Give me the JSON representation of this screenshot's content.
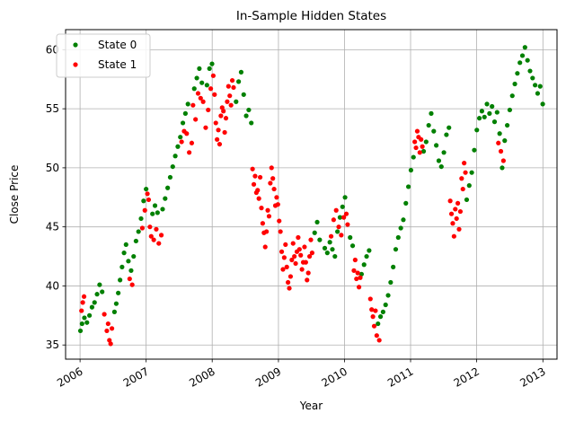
{
  "chart_data": {
    "type": "scatter",
    "title": "In-Sample Hidden States",
    "xlabel": "Year",
    "ylabel": "Close Price",
    "xlim": [
      "2005-10-13",
      "2013-03-20"
    ],
    "ylim": [
      33.8,
      61.7
    ],
    "x_ticks": [
      "2006",
      "2007",
      "2008",
      "2009",
      "2010",
      "2011",
      "2012",
      "2013"
    ],
    "y_ticks": [
      35,
      40,
      45,
      50,
      55,
      60
    ],
    "grid": true,
    "legend": {
      "position": "upper-left",
      "entries": [
        "State 0",
        "State 1"
      ]
    },
    "series": [
      {
        "name": "State 0",
        "color": "#008000",
        "points": [
          [
            "2006-01-03",
            36.2
          ],
          [
            "2006-01-12",
            36.8
          ],
          [
            "2006-01-25",
            37.3
          ],
          [
            "2006-02-08",
            36.9
          ],
          [
            "2006-02-22",
            37.5
          ],
          [
            "2006-03-08",
            38.2
          ],
          [
            "2006-03-22",
            38.6
          ],
          [
            "2006-04-05",
            39.3
          ],
          [
            "2006-04-19",
            40.1
          ],
          [
            "2006-05-03",
            39.5
          ],
          [
            "2006-07-10",
            37.8
          ],
          [
            "2006-07-20",
            38.5
          ],
          [
            "2006-07-31",
            39.4
          ],
          [
            "2006-08-10",
            40.5
          ],
          [
            "2006-08-21",
            41.6
          ],
          [
            "2006-09-01",
            42.8
          ],
          [
            "2006-09-12",
            43.5
          ],
          [
            "2006-09-25",
            42.1
          ],
          [
            "2006-10-10",
            41.3
          ],
          [
            "2006-10-24",
            42.5
          ],
          [
            "2006-11-06",
            43.8
          ],
          [
            "2006-11-20",
            44.6
          ],
          [
            "2006-12-04",
            45.7
          ],
          [
            "2006-12-18",
            47.2
          ],
          [
            "2007-01-01",
            48.2
          ],
          [
            "2007-02-05",
            46.1
          ],
          [
            "2007-02-19",
            46.8
          ],
          [
            "2007-03-05",
            46.2
          ],
          [
            "2007-04-02",
            46.5
          ],
          [
            "2007-04-16",
            47.4
          ],
          [
            "2007-04-30",
            48.3
          ],
          [
            "2007-05-14",
            49.2
          ],
          [
            "2007-05-28",
            50.1
          ],
          [
            "2007-06-11",
            51.0
          ],
          [
            "2007-06-25",
            51.8
          ],
          [
            "2007-07-09",
            52.6
          ],
          [
            "2007-07-23",
            53.8
          ],
          [
            "2007-08-06",
            54.6
          ],
          [
            "2007-08-20",
            55.4
          ],
          [
            "2007-09-24",
            56.7
          ],
          [
            "2007-10-08",
            57.6
          ],
          [
            "2007-10-22",
            58.4
          ],
          [
            "2007-11-05",
            57.2
          ],
          [
            "2007-12-03",
            57.0
          ],
          [
            "2007-12-17",
            58.4
          ],
          [
            "2007-12-31",
            58.8
          ],
          [
            "2008-05-12",
            55.6
          ],
          [
            "2008-05-26",
            57.3
          ],
          [
            "2008-06-09",
            58.1
          ],
          [
            "2008-06-23",
            56.2
          ],
          [
            "2008-07-07",
            54.4
          ],
          [
            "2008-07-21",
            54.9
          ],
          [
            "2008-08-04",
            53.8
          ],
          [
            "2009-07-20",
            44.5
          ],
          [
            "2009-08-03",
            45.4
          ],
          [
            "2009-08-17",
            43.9
          ],
          [
            "2009-09-14",
            43.2
          ],
          [
            "2009-09-28",
            42.8
          ],
          [
            "2009-10-12",
            43.7
          ],
          [
            "2009-10-26",
            43.1
          ],
          [
            "2009-11-09",
            42.5
          ],
          [
            "2009-11-23",
            44.6
          ],
          [
            "2009-12-07",
            45.8
          ],
          [
            "2009-12-21",
            46.7
          ],
          [
            "2010-01-04",
            47.5
          ],
          [
            "2010-02-01",
            44.1
          ],
          [
            "2010-02-15",
            43.4
          ],
          [
            "2010-04-05",
            41.0
          ],
          [
            "2010-04-19",
            41.8
          ],
          [
            "2010-05-03",
            42.5
          ],
          [
            "2010-05-17",
            43.0
          ],
          [
            "2010-07-05",
            36.8
          ],
          [
            "2010-07-19",
            37.4
          ],
          [
            "2010-08-02",
            37.8
          ],
          [
            "2010-08-16",
            38.4
          ],
          [
            "2010-08-30",
            39.2
          ],
          [
            "2010-09-13",
            40.3
          ],
          [
            "2010-09-27",
            41.6
          ],
          [
            "2010-10-11",
            43.1
          ],
          [
            "2010-10-25",
            44.1
          ],
          [
            "2010-11-08",
            44.9
          ],
          [
            "2010-11-22",
            45.6
          ],
          [
            "2010-12-06",
            47.0
          ],
          [
            "2010-12-20",
            48.4
          ],
          [
            "2011-01-03",
            49.8
          ],
          [
            "2011-01-17",
            50.9
          ],
          [
            "2011-03-14",
            51.4
          ],
          [
            "2011-03-28",
            52.2
          ],
          [
            "2011-04-11",
            53.6
          ],
          [
            "2011-04-25",
            54.6
          ],
          [
            "2011-05-09",
            53.1
          ],
          [
            "2011-05-23",
            51.9
          ],
          [
            "2011-06-06",
            50.6
          ],
          [
            "2011-06-20",
            50.1
          ],
          [
            "2011-07-04",
            51.3
          ],
          [
            "2011-07-18",
            52.8
          ],
          [
            "2011-08-01",
            53.4
          ],
          [
            "2011-11-07",
            47.3
          ],
          [
            "2011-11-21",
            48.5
          ],
          [
            "2011-12-05",
            49.6
          ],
          [
            "2011-12-19",
            51.5
          ],
          [
            "2012-01-02",
            53.2
          ],
          [
            "2012-01-16",
            54.2
          ],
          [
            "2012-01-30",
            54.8
          ],
          [
            "2012-02-13",
            54.3
          ],
          [
            "2012-02-27",
            55.4
          ],
          [
            "2012-03-12",
            54.6
          ],
          [
            "2012-03-26",
            55.2
          ],
          [
            "2012-04-09",
            53.9
          ],
          [
            "2012-04-23",
            54.7
          ],
          [
            "2012-05-07",
            52.9
          ],
          [
            "2012-05-21",
            50.0
          ],
          [
            "2012-06-04",
            52.3
          ],
          [
            "2012-06-18",
            53.6
          ],
          [
            "2012-07-02",
            54.9
          ],
          [
            "2012-07-16",
            56.1
          ],
          [
            "2012-07-30",
            57.1
          ],
          [
            "2012-08-13",
            58.0
          ],
          [
            "2012-08-27",
            58.9
          ],
          [
            "2012-09-10",
            59.5
          ],
          [
            "2012-09-24",
            60.2
          ],
          [
            "2012-10-08",
            59.1
          ],
          [
            "2012-10-22",
            58.2
          ],
          [
            "2012-11-05",
            57.6
          ],
          [
            "2012-11-19",
            57.0
          ],
          [
            "2012-12-03",
            56.3
          ],
          [
            "2012-12-17",
            56.9
          ],
          [
            "2012-12-31",
            55.4
          ]
        ]
      },
      {
        "name": "State 1",
        "color": "#ff0000",
        "points": [
          [
            "2006-01-09",
            37.9
          ],
          [
            "2006-01-16",
            38.6
          ],
          [
            "2006-01-23",
            39.1
          ],
          [
            "2006-05-15",
            37.6
          ],
          [
            "2006-05-29",
            36.2
          ],
          [
            "2006-06-05",
            36.8
          ],
          [
            "2006-06-12",
            35.4
          ],
          [
            "2006-06-19",
            35.1
          ],
          [
            "2006-06-26",
            36.4
          ],
          [
            "2006-10-02",
            40.6
          ],
          [
            "2006-10-16",
            40.1
          ],
          [
            "2006-12-11",
            44.9
          ],
          [
            "2006-12-25",
            46.4
          ],
          [
            "2007-01-08",
            47.8
          ],
          [
            "2007-01-15",
            47.3
          ],
          [
            "2007-01-22",
            45.0
          ],
          [
            "2007-01-29",
            44.2
          ],
          [
            "2007-02-12",
            43.9
          ],
          [
            "2007-02-26",
            44.8
          ],
          [
            "2007-03-12",
            43.6
          ],
          [
            "2007-03-26",
            44.3
          ],
          [
            "2007-07-16",
            52.2
          ],
          [
            "2007-07-30",
            53.1
          ],
          [
            "2007-08-13",
            52.9
          ],
          [
            "2007-08-27",
            51.3
          ],
          [
            "2007-09-10",
            52.1
          ],
          [
            "2007-09-17",
            55.3
          ],
          [
            "2007-10-01",
            54.1
          ],
          [
            "2007-10-15",
            56.3
          ],
          [
            "2007-10-29",
            55.9
          ],
          [
            "2007-11-12",
            55.6
          ],
          [
            "2007-11-26",
            53.4
          ],
          [
            "2007-12-10",
            54.9
          ],
          [
            "2007-12-24",
            56.7
          ],
          [
            "2008-01-07",
            57.8
          ],
          [
            "2008-01-14",
            56.2
          ],
          [
            "2008-01-21",
            53.8
          ],
          [
            "2008-01-28",
            52.4
          ],
          [
            "2008-02-04",
            53.2
          ],
          [
            "2008-02-11",
            52.0
          ],
          [
            "2008-02-18",
            54.4
          ],
          [
            "2008-02-25",
            55.1
          ],
          [
            "2008-03-03",
            54.8
          ],
          [
            "2008-03-10",
            53.0
          ],
          [
            "2008-03-17",
            54.2
          ],
          [
            "2008-03-24",
            55.6
          ],
          [
            "2008-03-31",
            56.9
          ],
          [
            "2008-04-07",
            56.1
          ],
          [
            "2008-04-14",
            55.3
          ],
          [
            "2008-04-21",
            57.4
          ],
          [
            "2008-04-28",
            56.8
          ],
          [
            "2008-08-11",
            49.9
          ],
          [
            "2008-08-18",
            48.6
          ],
          [
            "2008-08-25",
            49.3
          ],
          [
            "2008-09-01",
            47.9
          ],
          [
            "2008-09-08",
            48.1
          ],
          [
            "2008-09-15",
            47.4
          ],
          [
            "2008-09-22",
            49.2
          ],
          [
            "2008-09-29",
            46.6
          ],
          [
            "2008-10-06",
            45.3
          ],
          [
            "2008-10-13",
            44.5
          ],
          [
            "2008-10-20",
            43.3
          ],
          [
            "2008-10-27",
            44.6
          ],
          [
            "2008-11-03",
            46.4
          ],
          [
            "2008-11-10",
            45.9
          ],
          [
            "2008-11-17",
            48.7
          ],
          [
            "2008-11-24",
            50.0
          ],
          [
            "2008-12-01",
            49.1
          ],
          [
            "2008-12-08",
            48.2
          ],
          [
            "2008-12-15",
            46.8
          ],
          [
            "2008-12-22",
            47.5
          ],
          [
            "2008-12-29",
            46.9
          ],
          [
            "2009-01-05",
            45.5
          ],
          [
            "2009-01-12",
            44.6
          ],
          [
            "2009-01-19",
            42.9
          ],
          [
            "2009-01-26",
            41.4
          ],
          [
            "2009-02-02",
            42.4
          ],
          [
            "2009-02-09",
            43.5
          ],
          [
            "2009-02-16",
            41.6
          ],
          [
            "2009-02-23",
            40.3
          ],
          [
            "2009-03-02",
            39.8
          ],
          [
            "2009-03-09",
            40.8
          ],
          [
            "2009-03-16",
            42.2
          ],
          [
            "2009-03-23",
            43.6
          ],
          [
            "2009-03-30",
            42.5
          ],
          [
            "2009-04-06",
            41.9
          ],
          [
            "2009-04-13",
            42.9
          ],
          [
            "2009-04-20",
            44.1
          ],
          [
            "2009-04-27",
            43.1
          ],
          [
            "2009-05-04",
            42.6
          ],
          [
            "2009-05-11",
            41.4
          ],
          [
            "2009-05-18",
            42.0
          ],
          [
            "2009-05-25",
            43.3
          ],
          [
            "2009-06-01",
            42.0
          ],
          [
            "2009-06-08",
            40.5
          ],
          [
            "2009-06-15",
            41.1
          ],
          [
            "2009-06-22",
            42.5
          ],
          [
            "2009-06-29",
            43.9
          ],
          [
            "2009-07-06",
            42.8
          ],
          [
            "2009-10-19",
            44.2
          ],
          [
            "2009-11-02",
            45.6
          ],
          [
            "2009-11-16",
            46.4
          ],
          [
            "2009-11-30",
            45.0
          ],
          [
            "2009-12-14",
            44.3
          ],
          [
            "2009-12-28",
            45.8
          ],
          [
            "2010-01-11",
            46.1
          ],
          [
            "2010-01-18",
            45.2
          ],
          [
            "2010-02-22",
            41.3
          ],
          [
            "2010-03-01",
            42.2
          ],
          [
            "2010-03-08",
            40.6
          ],
          [
            "2010-03-15",
            41.1
          ],
          [
            "2010-03-22",
            39.9
          ],
          [
            "2010-03-29",
            40.7
          ],
          [
            "2010-05-24",
            38.9
          ],
          [
            "2010-05-31",
            38.0
          ],
          [
            "2010-06-07",
            37.4
          ],
          [
            "2010-06-14",
            36.6
          ],
          [
            "2010-06-21",
            37.9
          ],
          [
            "2010-06-28",
            35.8
          ],
          [
            "2010-07-12",
            35.4
          ],
          [
            "2011-01-24",
            52.2
          ],
          [
            "2011-01-31",
            51.7
          ],
          [
            "2011-02-07",
            53.1
          ],
          [
            "2011-02-14",
            52.6
          ],
          [
            "2011-02-21",
            51.3
          ],
          [
            "2011-02-28",
            52.4
          ],
          [
            "2011-03-07",
            51.8
          ],
          [
            "2011-08-08",
            47.2
          ],
          [
            "2011-08-15",
            46.1
          ],
          [
            "2011-08-22",
            45.3
          ],
          [
            "2011-08-29",
            44.2
          ],
          [
            "2011-09-05",
            46.5
          ],
          [
            "2011-09-12",
            45.7
          ],
          [
            "2011-09-19",
            47.0
          ],
          [
            "2011-09-26",
            44.8
          ],
          [
            "2011-10-03",
            46.3
          ],
          [
            "2011-10-10",
            49.1
          ],
          [
            "2011-10-17",
            48.2
          ],
          [
            "2011-10-24",
            50.4
          ],
          [
            "2011-10-31",
            49.6
          ],
          [
            "2012-04-30",
            52.1
          ],
          [
            "2012-05-14",
            51.4
          ],
          [
            "2012-05-28",
            50.6
          ]
        ]
      }
    ]
  }
}
